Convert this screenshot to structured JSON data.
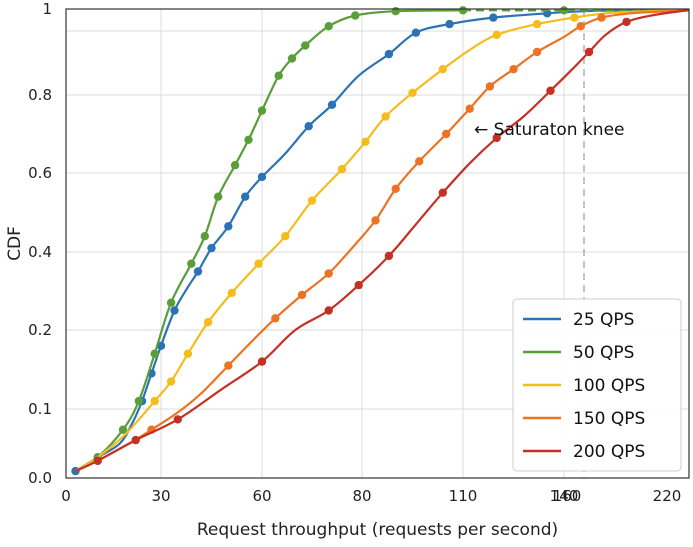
{
  "chart_data": {
    "type": "line",
    "xlabel": "Request throughput (requests per second)",
    "ylabel": "CDF",
    "x_ticks": [
      "0",
      "30",
      "60",
      "80",
      "110",
      "140",
      "160",
      "220"
    ],
    "y_ticks": [
      "0.0",
      "0.1",
      "0.2",
      "0.4",
      "0.6",
      "0.8",
      "1"
    ],
    "grid": true,
    "legend_position": "lower-right",
    "annotation": "← Saturaton knee",
    "reference_line_x": 172,
    "series": [
      {
        "name": "25 QPS",
        "color": "#2b73b5",
        "points": [
          [
            3,
            0.01
          ],
          [
            10,
            0.03
          ],
          [
            17,
            0.05
          ],
          [
            21,
            0.08
          ],
          [
            24,
            0.11
          ],
          [
            27,
            0.145
          ],
          [
            30,
            0.18
          ],
          [
            34,
            0.25
          ],
          [
            38,
            0.31
          ],
          [
            41,
            0.35
          ],
          [
            45,
            0.41
          ],
          [
            50,
            0.465
          ],
          [
            55,
            0.54
          ],
          [
            60,
            0.59
          ],
          [
            67,
            0.65
          ],
          [
            74,
            0.72
          ],
          [
            81,
            0.775
          ],
          [
            89,
            0.845
          ],
          [
            98,
            0.895
          ],
          [
            106,
            0.945
          ],
          [
            116,
            0.965
          ],
          [
            129,
            0.98
          ],
          [
            145,
            0.99
          ],
          [
            160,
            0.995
          ],
          [
            180,
            0.997
          ],
          [
            220,
            0.997
          ]
        ],
        "markers": [
          [
            3,
            0.01
          ],
          [
            10,
            0.03
          ],
          [
            24,
            0.11
          ],
          [
            27,
            0.145
          ],
          [
            30,
            0.18
          ],
          [
            34,
            0.25
          ],
          [
            41,
            0.35
          ],
          [
            45,
            0.41
          ],
          [
            50,
            0.465
          ],
          [
            55,
            0.54
          ],
          [
            60,
            0.59
          ],
          [
            74,
            0.72
          ],
          [
            81,
            0.775
          ],
          [
            98,
            0.895
          ],
          [
            106,
            0.945
          ],
          [
            116,
            0.965
          ],
          [
            129,
            0.98
          ],
          [
            145,
            0.99
          ]
        ]
      },
      {
        "name": "50 QPS",
        "color": "#5a9e3a",
        "points": [
          [
            3,
            0.01
          ],
          [
            10,
            0.03
          ],
          [
            18,
            0.07
          ],
          [
            23,
            0.11
          ],
          [
            28,
            0.17
          ],
          [
            33,
            0.27
          ],
          [
            39,
            0.37
          ],
          [
            43,
            0.44
          ],
          [
            47,
            0.54
          ],
          [
            52,
            0.62
          ],
          [
            56,
            0.685
          ],
          [
            60,
            0.76
          ],
          [
            65,
            0.845
          ],
          [
            69,
            0.885
          ],
          [
            73,
            0.915
          ],
          [
            80,
            0.96
          ],
          [
            88,
            0.985
          ],
          [
            100,
            0.995
          ],
          [
            120,
            0.997
          ],
          [
            150,
            0.997
          ],
          [
            200,
            0.998
          ]
        ],
        "dashed_from_x": 120,
        "markers": [
          [
            10,
            0.03
          ],
          [
            18,
            0.07
          ],
          [
            23,
            0.11
          ],
          [
            28,
            0.17
          ],
          [
            33,
            0.27
          ],
          [
            39,
            0.37
          ],
          [
            43,
            0.44
          ],
          [
            47,
            0.54
          ],
          [
            52,
            0.62
          ],
          [
            56,
            0.685
          ],
          [
            60,
            0.76
          ],
          [
            65,
            0.845
          ],
          [
            69,
            0.885
          ],
          [
            73,
            0.915
          ],
          [
            80,
            0.96
          ],
          [
            88,
            0.985
          ],
          [
            100,
            0.995
          ],
          [
            120,
            0.997
          ],
          [
            150,
            0.997
          ]
        ]
      },
      {
        "name": "100 QPS",
        "color": "#f5bd1c",
        "points": [
          [
            3,
            0.01
          ],
          [
            10,
            0.03
          ],
          [
            18,
            0.06
          ],
          [
            24,
            0.09
          ],
          [
            28,
            0.11
          ],
          [
            33,
            0.135
          ],
          [
            38,
            0.17
          ],
          [
            44,
            0.22
          ],
          [
            51,
            0.295
          ],
          [
            59,
            0.37
          ],
          [
            67,
            0.44
          ],
          [
            75,
            0.53
          ],
          [
            84,
            0.61
          ],
          [
            91,
            0.68
          ],
          [
            97,
            0.745
          ],
          [
            105,
            0.805
          ],
          [
            114,
            0.86
          ],
          [
            122,
            0.905
          ],
          [
            130,
            0.94
          ],
          [
            142,
            0.965
          ],
          [
            155,
            0.98
          ],
          [
            170,
            0.99
          ],
          [
            190,
            0.995
          ],
          [
            220,
            0.997
          ]
        ],
        "markers": [
          [
            28,
            0.11
          ],
          [
            33,
            0.135
          ],
          [
            38,
            0.17
          ],
          [
            44,
            0.22
          ],
          [
            51,
            0.295
          ],
          [
            59,
            0.37
          ],
          [
            67,
            0.44
          ],
          [
            75,
            0.53
          ],
          [
            84,
            0.61
          ],
          [
            91,
            0.68
          ],
          [
            97,
            0.745
          ],
          [
            105,
            0.805
          ],
          [
            114,
            0.86
          ],
          [
            130,
            0.94
          ],
          [
            142,
            0.965
          ],
          [
            155,
            0.98
          ]
        ]
      },
      {
        "name": "150 QPS",
        "color": "#ee7223",
        "points": [
          [
            3,
            0.01
          ],
          [
            10,
            0.025
          ],
          [
            20,
            0.05
          ],
          [
            27,
            0.07
          ],
          [
            35,
            0.095
          ],
          [
            42,
            0.12
          ],
          [
            50,
            0.155
          ],
          [
            58,
            0.19
          ],
          [
            64,
            0.23
          ],
          [
            72,
            0.29
          ],
          [
            80,
            0.345
          ],
          [
            87,
            0.41
          ],
          [
            94,
            0.48
          ],
          [
            100,
            0.56
          ],
          [
            107,
            0.63
          ],
          [
            115,
            0.7
          ],
          [
            122,
            0.765
          ],
          [
            128,
            0.82
          ],
          [
            135,
            0.86
          ],
          [
            142,
            0.9
          ],
          [
            150,
            0.935
          ],
          [
            158,
            0.96
          ],
          [
            168,
            0.98
          ],
          [
            182,
            0.99
          ],
          [
            200,
            0.995
          ],
          [
            220,
            0.997
          ]
        ],
        "markers": [
          [
            10,
            0.025
          ],
          [
            27,
            0.07
          ],
          [
            50,
            0.155
          ],
          [
            64,
            0.23
          ],
          [
            72,
            0.29
          ],
          [
            80,
            0.345
          ],
          [
            94,
            0.48
          ],
          [
            100,
            0.56
          ],
          [
            107,
            0.63
          ],
          [
            115,
            0.7
          ],
          [
            122,
            0.765
          ],
          [
            128,
            0.82
          ],
          [
            135,
            0.86
          ],
          [
            142,
            0.9
          ],
          [
            158,
            0.96
          ],
          [
            168,
            0.98
          ]
        ]
      },
      {
        "name": "200 QPS",
        "color": "#c53024",
        "points": [
          [
            3,
            0.01
          ],
          [
            10,
            0.025
          ],
          [
            22,
            0.055
          ],
          [
            35,
            0.085
          ],
          [
            48,
            0.125
          ],
          [
            60,
            0.16
          ],
          [
            70,
            0.2
          ],
          [
            80,
            0.25
          ],
          [
            89,
            0.315
          ],
          [
            98,
            0.39
          ],
          [
            106,
            0.47
          ],
          [
            114,
            0.55
          ],
          [
            122,
            0.625
          ],
          [
            130,
            0.69
          ],
          [
            138,
            0.745
          ],
          [
            146,
            0.81
          ],
          [
            154,
            0.86
          ],
          [
            162,
            0.9
          ],
          [
            170,
            0.94
          ],
          [
            180,
            0.97
          ],
          [
            192,
            0.985
          ],
          [
            206,
            0.995
          ],
          [
            220,
            0.997
          ]
        ],
        "markers": [
          [
            10,
            0.025
          ],
          [
            22,
            0.055
          ],
          [
            35,
            0.085
          ],
          [
            60,
            0.16
          ],
          [
            80,
            0.25
          ],
          [
            89,
            0.315
          ],
          [
            98,
            0.39
          ],
          [
            114,
            0.55
          ],
          [
            130,
            0.69
          ],
          [
            146,
            0.81
          ],
          [
            162,
            0.9
          ],
          [
            180,
            0.97
          ]
        ]
      }
    ]
  }
}
